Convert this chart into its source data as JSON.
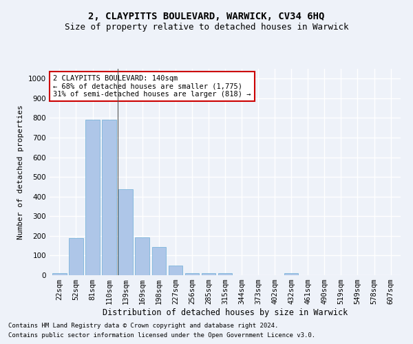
{
  "title1": "2, CLAYPITTS BOULEVARD, WARWICK, CV34 6HQ",
  "title2": "Size of property relative to detached houses in Warwick",
  "xlabel": "Distribution of detached houses by size in Warwick",
  "ylabel": "Number of detached properties",
  "categories": [
    "22sqm",
    "52sqm",
    "81sqm",
    "110sqm",
    "139sqm",
    "169sqm",
    "198sqm",
    "227sqm",
    "256sqm",
    "285sqm",
    "315sqm",
    "344sqm",
    "373sqm",
    "402sqm",
    "432sqm",
    "461sqm",
    "490sqm",
    "519sqm",
    "549sqm",
    "578sqm",
    "607sqm"
  ],
  "values": [
    12,
    190,
    790,
    790,
    438,
    193,
    143,
    48,
    12,
    10,
    10,
    0,
    0,
    0,
    12,
    0,
    0,
    0,
    0,
    0,
    0
  ],
  "bar_color": "#aec6e8",
  "bar_edge_color": "#6aadd5",
  "annotation_text": "2 CLAYPITTS BOULEVARD: 140sqm\n← 68% of detached houses are smaller (1,775)\n31% of semi-detached houses are larger (818) →",
  "annotation_box_color": "#ffffff",
  "annotation_box_edge_color": "#cc0000",
  "vline_x": 4,
  "ylim": [
    0,
    1050
  ],
  "yticks": [
    0,
    100,
    200,
    300,
    400,
    500,
    600,
    700,
    800,
    900,
    1000
  ],
  "footnote1": "Contains HM Land Registry data © Crown copyright and database right 2024.",
  "footnote2": "Contains public sector information licensed under the Open Government Licence v3.0.",
  "background_color": "#eef2f9",
  "plot_bg_color": "#eef2f9",
  "grid_color": "#ffffff",
  "title1_fontsize": 10,
  "title2_fontsize": 9,
  "xlabel_fontsize": 8.5,
  "ylabel_fontsize": 8,
  "tick_fontsize": 7.5,
  "annotation_fontsize": 7.5,
  "footnote_fontsize": 6.5
}
